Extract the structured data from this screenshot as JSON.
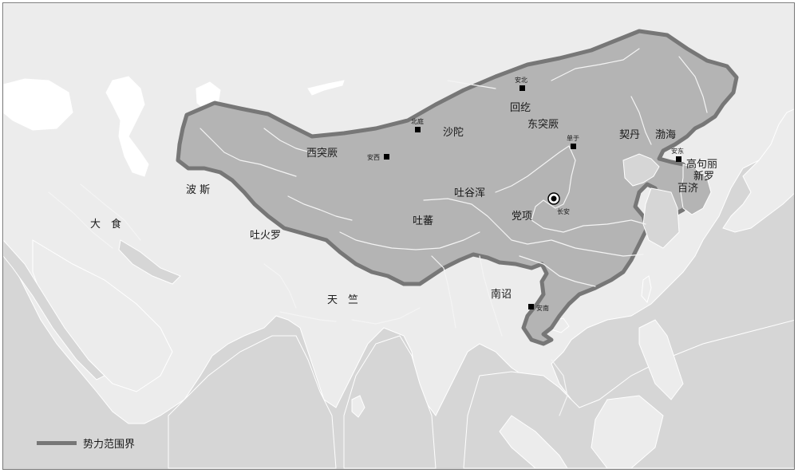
{
  "places": {
    "dashi": "大　食",
    "bosi": "波 斯",
    "tuhuoluo": "吐火罗",
    "tianzhu": "天　竺",
    "xitujue": "西突厥",
    "anxi": "安西",
    "beiting": "北庭",
    "shatuo": "沙陀",
    "anbei": "安北",
    "huihe": "回纥",
    "dongtujue": "东突厥",
    "chanyu": "单于",
    "qidan": "契丹",
    "bohai": "渤海",
    "andong": "安东",
    "gaogouli": "高句丽",
    "xinluo": "新罗",
    "baiji": "百济",
    "tuyuhun": "吐谷浑",
    "tubo": "吐蕃",
    "dangxiang": "党项",
    "changan": "长安",
    "nanzhao": "南诏",
    "annan": "安南"
  },
  "legend": {
    "label": "势力范围界"
  },
  "colors": {
    "sea": "#d6d6d6",
    "land": "#ececec",
    "territory": "#b4b4b4",
    "border": "#777777",
    "water": "#ffffff"
  }
}
